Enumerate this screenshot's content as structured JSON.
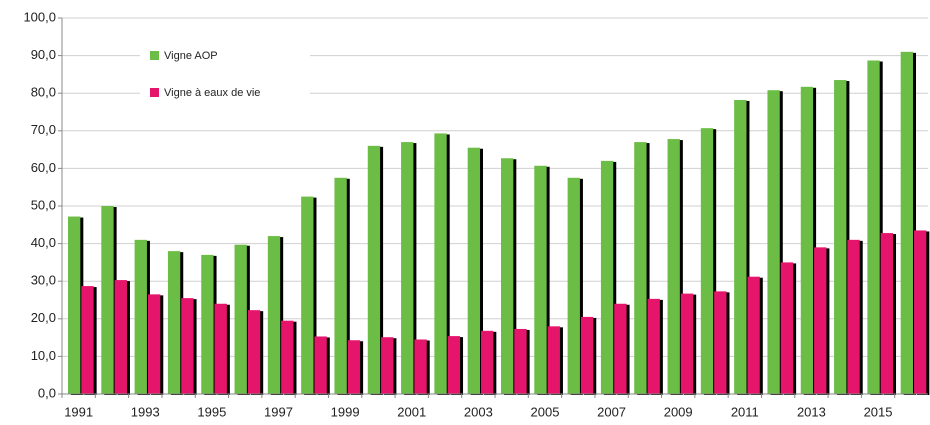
{
  "chart_data": {
    "type": "bar",
    "categories": [
      "1991",
      null,
      "1993",
      null,
      "1995",
      null,
      "1997",
      null,
      "1999",
      null,
      "2001",
      null,
      "2003",
      null,
      "2005",
      null,
      "2007",
      null,
      "2009",
      null,
      "2011",
      null,
      "2013",
      null,
      "2015",
      null
    ],
    "series": [
      {
        "name": "Vigne AOP",
        "color": "#6cbd45",
        "values": [
          47.2,
          50,
          41,
          38,
          37,
          39.7,
          42,
          52.5,
          57.5,
          66,
          67,
          69.3,
          65.5,
          62.7,
          60.7,
          57.5,
          62,
          67,
          67.8,
          70.7,
          78.2,
          80.8,
          81.7,
          83.5,
          88.7,
          91
        ]
      },
      {
        "name": "Vigne à eaux de vie",
        "color": "#e5156b",
        "values": [
          28.7,
          30.3,
          26.5,
          25.5,
          24,
          22.3,
          19.5,
          15.3,
          14.3,
          15.1,
          14.5,
          15.4,
          16.8,
          17.3,
          18,
          20.5,
          24,
          25.3,
          26.7,
          27.3,
          31.2,
          35,
          39,
          41,
          42.8,
          43.5
        ]
      }
    ],
    "ylim": [
      0,
      100
    ],
    "yticks": [
      {
        "value": 0,
        "label": "0,0"
      },
      {
        "value": 10,
        "label": "10,0"
      },
      {
        "value": 20,
        "label": "20,0"
      },
      {
        "value": 30,
        "label": "30,0"
      },
      {
        "value": 40,
        "label": "40,0"
      },
      {
        "value": 50,
        "label": "50,0"
      },
      {
        "value": 60,
        "label": "60,0"
      },
      {
        "value": 70,
        "label": "70,0"
      },
      {
        "value": 80,
        "label": "80,0"
      },
      {
        "value": 90,
        "label": "90,0"
      },
      {
        "value": 100,
        "label": "100,0"
      }
    ],
    "grid": true,
    "legend": "top-left"
  }
}
